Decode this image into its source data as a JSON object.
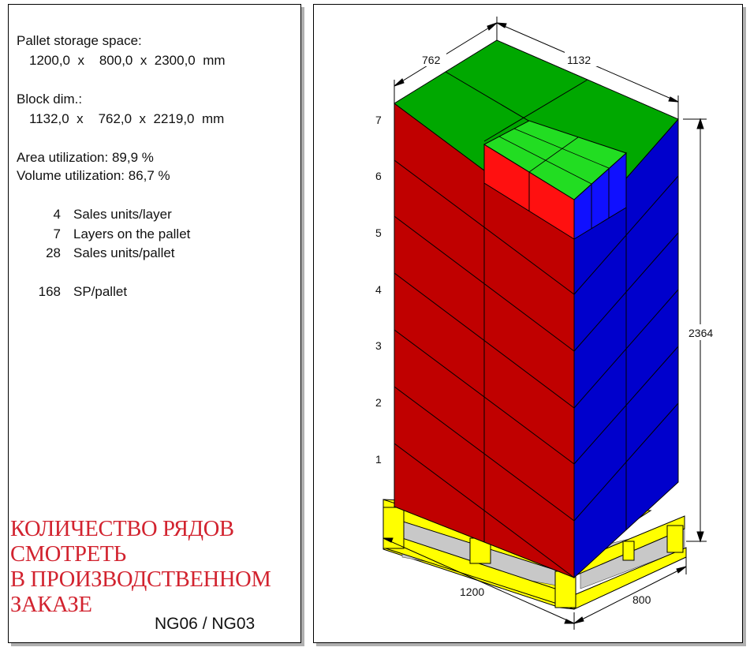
{
  "info": {
    "pallet_title": "Pallet storage space:",
    "pallet_dims": "1200,0  x    800,0  x  2300,0  mm",
    "block_title": "Block dim.:",
    "block_dims": "1132,0  x    762,0  x  2219,0  mm",
    "area_util": "Area utilization: 89,9 %",
    "volume_util": "Volume utilization: 86,7 %",
    "stats": [
      {
        "value": "4",
        "label": "Sales units/layer"
      },
      {
        "value": "7",
        "label": "Layers on the pallet"
      },
      {
        "value": "28",
        "label": "Sales units/pallet"
      }
    ],
    "sp_value": "168",
    "sp_label": "SP/pallet"
  },
  "stamp": {
    "lines": [
      "КОЛИЧЕСТВО РЯДОВ",
      "СМОТРЕТЬ",
      "В ПРОИЗВОДСТВЕННОМ",
      "ЗАКАЗЕ"
    ]
  },
  "code": "NG06 / NG03",
  "diagram": {
    "layer_numbers": [
      "7",
      "6",
      "5",
      "4",
      "3",
      "2",
      "1"
    ],
    "dim_top_left": "762",
    "dim_top_right": "1132",
    "dim_height": "2364",
    "dim_length": "1200",
    "dim_width": "800",
    "colors": {
      "front": "#c00000",
      "side": "#0000cc",
      "top": "#00a800",
      "top_light": "#22dd22",
      "cutout_front": "#ff1010",
      "cutout_side": "#1010ff",
      "pallet": "#ffff00",
      "pallet_shadow": "#c8c8c8"
    }
  }
}
